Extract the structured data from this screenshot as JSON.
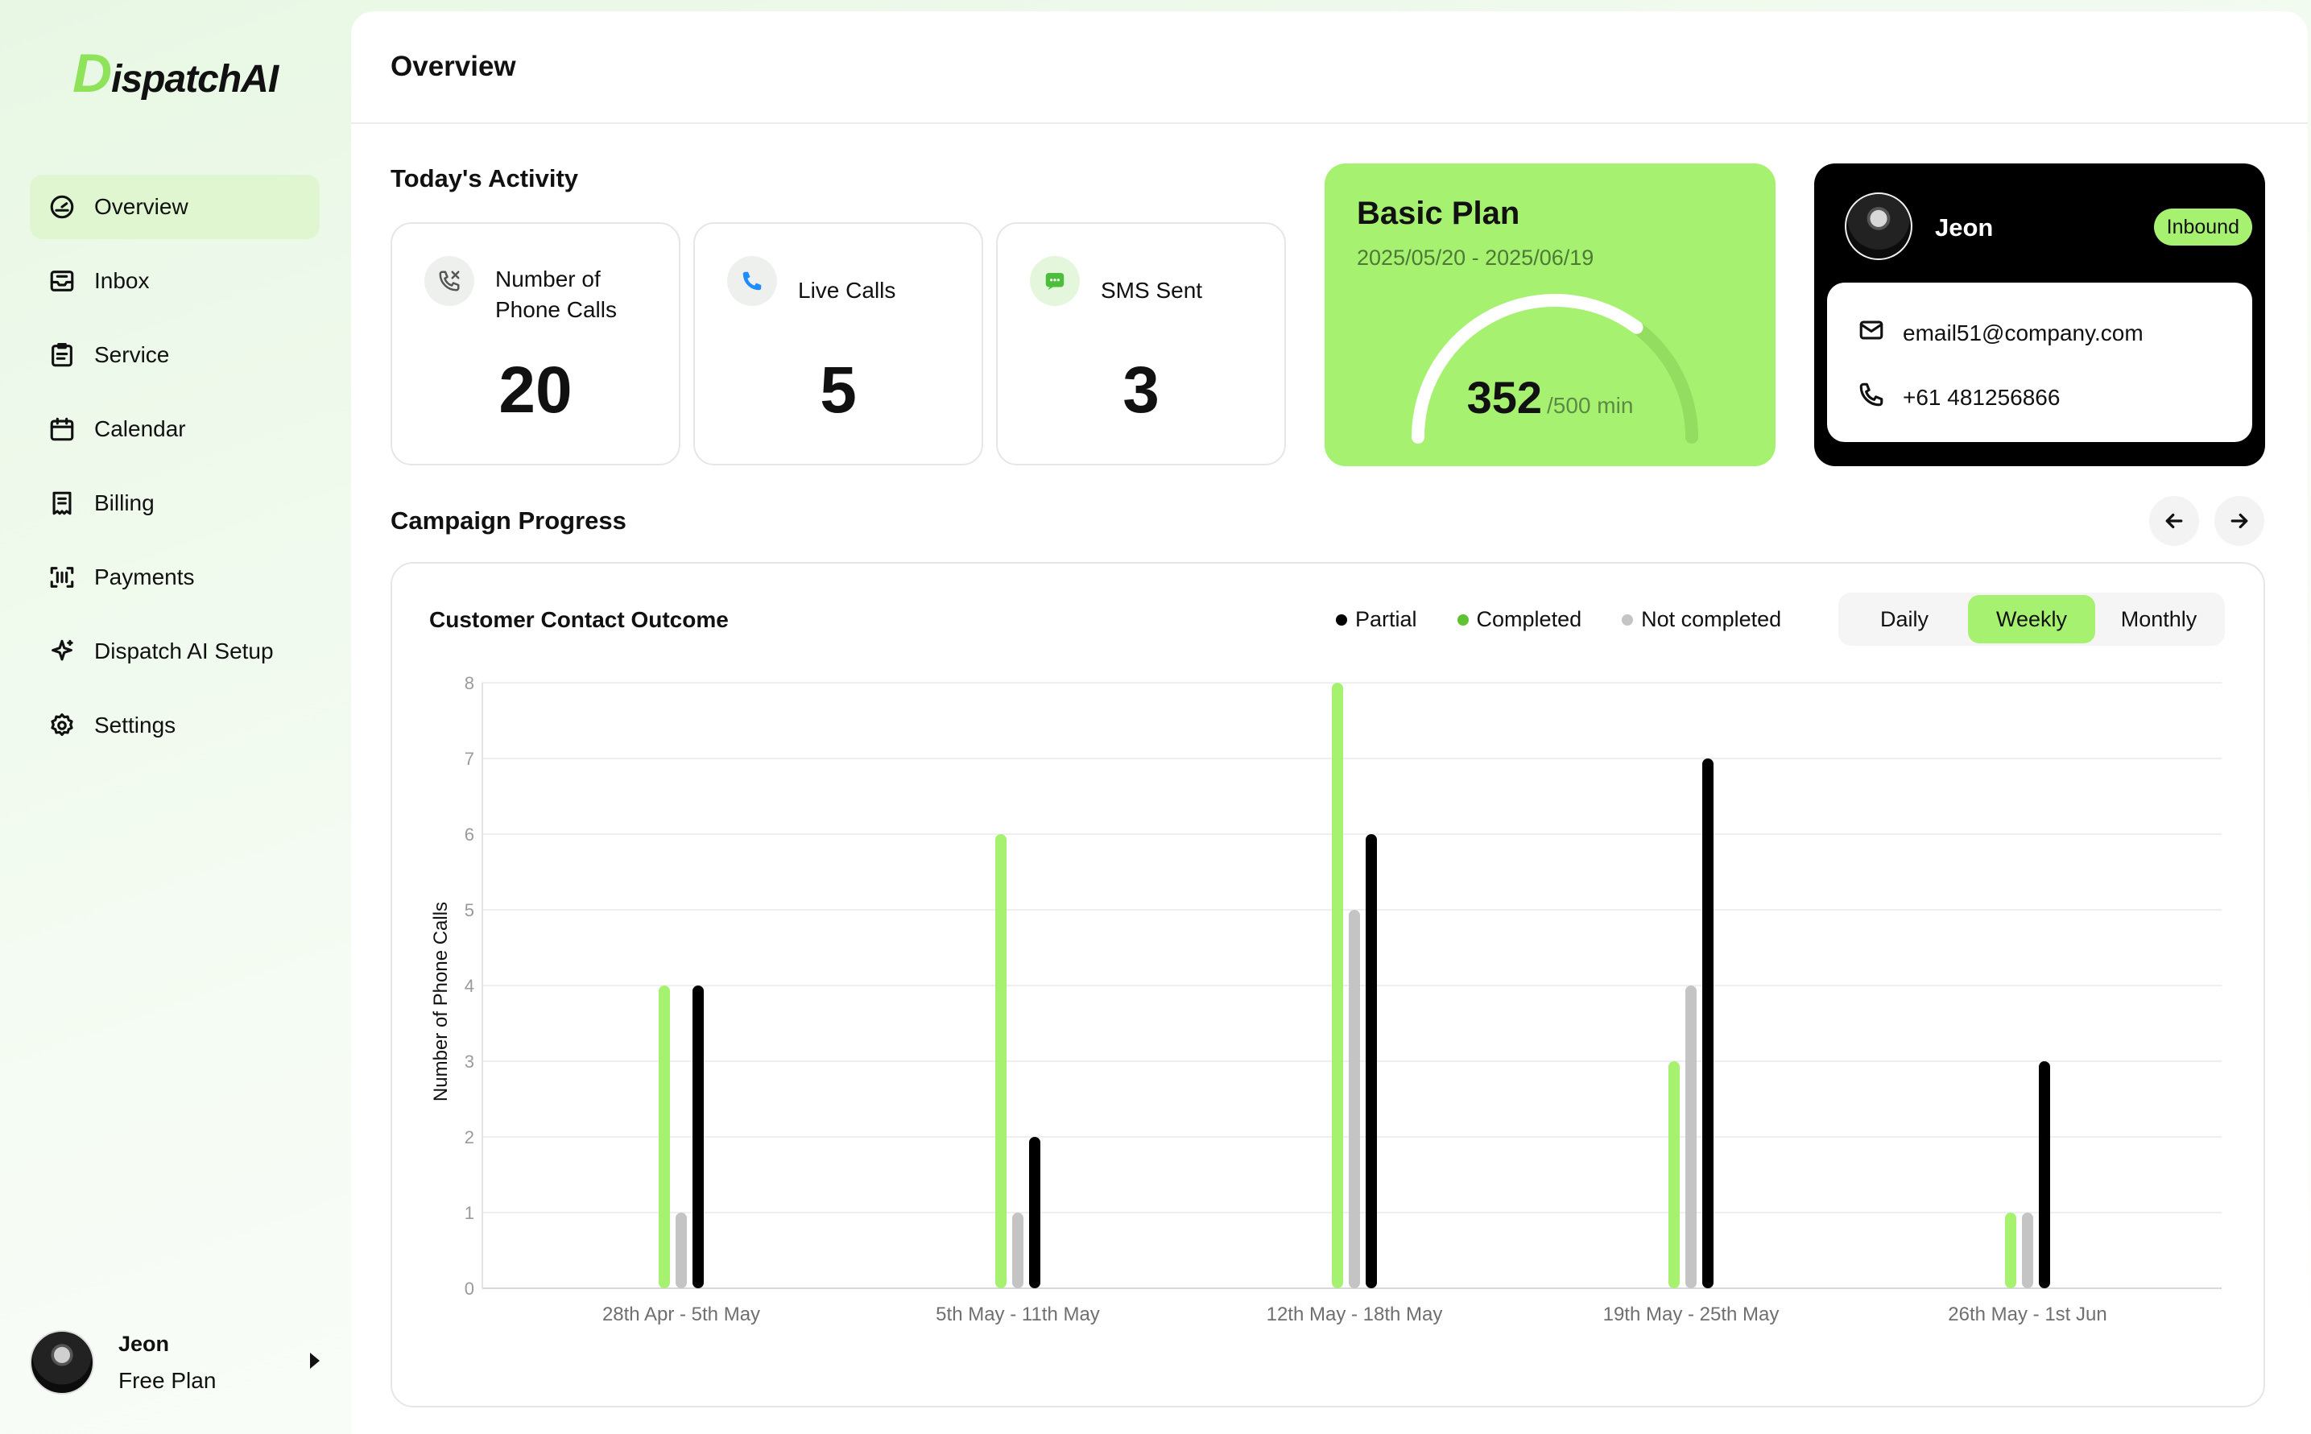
{
  "app": {
    "logo_initial": "D",
    "logo_rest": "ispatchAI"
  },
  "sidebar": {
    "items": [
      {
        "label": "Overview",
        "icon": "dashboard-icon",
        "active": true
      },
      {
        "label": "Inbox",
        "icon": "inbox-icon"
      },
      {
        "label": "Service",
        "icon": "clipboard-icon"
      },
      {
        "label": "Calendar",
        "icon": "calendar-icon"
      },
      {
        "label": "Billing",
        "icon": "receipt-icon"
      },
      {
        "label": "Payments",
        "icon": "scan-icon"
      },
      {
        "label": "Dispatch AI Setup",
        "icon": "sparkle-icon"
      },
      {
        "label": "Settings",
        "icon": "gear-icon"
      }
    ],
    "user": {
      "name": "Jeon",
      "plan": "Free Plan"
    }
  },
  "header": {
    "title": "Overview"
  },
  "activity": {
    "title": "Today's Activity",
    "cards": [
      {
        "label": "Number of Phone Calls",
        "value": "20",
        "icon": "phone-icon"
      },
      {
        "label": "Live Calls",
        "value": "5",
        "icon": "phone-live-icon"
      },
      {
        "label": "SMS Sent",
        "value": "3",
        "icon": "message-icon"
      }
    ]
  },
  "plan": {
    "name": "Basic Plan",
    "dates": "2025/05/20 - 2025/06/19",
    "used": "352",
    "limit_label": "/500 min",
    "used_fraction": 0.704
  },
  "contact": {
    "name": "Jeon",
    "badge": "Inbound",
    "email": "email51@company.com",
    "phone": "+61 481256866"
  },
  "campaign": {
    "title": "Campaign Progress",
    "chart_title": "Customer Contact Outcome",
    "periods": [
      "Daily",
      "Weekly",
      "Monthly"
    ],
    "active_period": "Weekly"
  },
  "colors": {
    "completed": "#a6f270",
    "not_completed": "#c4c4c4",
    "partial": "#000000",
    "accent": "#a6f270"
  },
  "chart_data": {
    "type": "bar",
    "ylabel": "Number of Phone Calls",
    "ylim": [
      0,
      8
    ],
    "yticks": [
      "0",
      "1",
      "2",
      "3",
      "4",
      "5",
      "6",
      "7",
      "8"
    ],
    "grid": true,
    "legend_position": "top-right",
    "legend": [
      "Partial",
      "Completed",
      "Not completed"
    ],
    "categories": [
      "28th Apr - 5th May",
      "5th May - 11th May",
      "12th May - 18th May",
      "19th May - 25th May",
      "26th May - 1st Jun"
    ],
    "series": [
      {
        "name": "Completed",
        "color": "#a6f270",
        "values": [
          4,
          6,
          8,
          3,
          1
        ]
      },
      {
        "name": "Not completed",
        "color": "#c4c4c4",
        "values": [
          1,
          1,
          5,
          4,
          1
        ]
      },
      {
        "name": "Partial",
        "color": "#000000",
        "values": [
          4,
          2,
          6,
          7,
          3
        ]
      }
    ]
  }
}
